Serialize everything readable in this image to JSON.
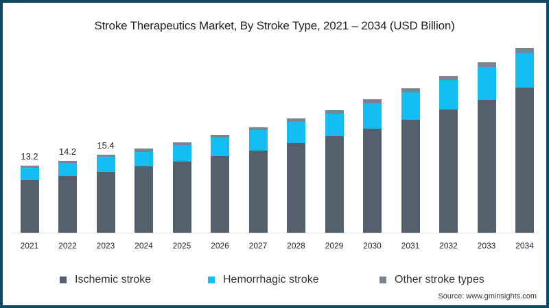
{
  "title": "Stroke Therapeutics Market, By Stroke Type, 2021 – 2034 (USD Billion)",
  "source": "Source: www.gminsights.com",
  "colors": {
    "ischemic": "#55606d",
    "hemorrhagic": "#14bdf2",
    "other": "#7a8593",
    "frame": "#0e4a66"
  },
  "legend": [
    {
      "label": "Ischemic stroke",
      "color": "#55606d"
    },
    {
      "label": "Hemorrhagic stroke",
      "color": "#14bdf2"
    },
    {
      "label": "Other stroke types",
      "color": "#7a8593"
    }
  ],
  "value_labels": {
    "2021": "13.2",
    "2022": "14.2",
    "2023": "15.4"
  },
  "chart_data": {
    "type": "bar",
    "stacked": true,
    "title": "Stroke Therapeutics Market, By Stroke Type, 2021 – 2034 (USD Billion)",
    "xlabel": "",
    "ylabel": "USD Billion",
    "ylim": [
      0,
      38
    ],
    "grid": false,
    "legend_position": "bottom",
    "categories": [
      "2021",
      "2022",
      "2023",
      "2024",
      "2025",
      "2026",
      "2027",
      "2028",
      "2029",
      "2030",
      "2031",
      "2032",
      "2033",
      "2034"
    ],
    "series": [
      {
        "name": "Ischemic stroke",
        "values": [
          10.4,
          11.2,
          12.0,
          13.1,
          14.0,
          15.1,
          16.2,
          17.7,
          19.0,
          20.5,
          22.2,
          24.3,
          26.1,
          28.6
        ]
      },
      {
        "name": "Hemorrhagic stroke",
        "values": [
          2.4,
          2.6,
          2.9,
          2.8,
          3.2,
          3.6,
          4.0,
          4.1,
          4.5,
          5.0,
          5.4,
          5.8,
          6.5,
          6.9
        ]
      },
      {
        "name": "Other stroke types",
        "values": [
          0.4,
          0.4,
          0.5,
          0.7,
          0.6,
          0.6,
          0.6,
          0.7,
          0.6,
          0.8,
          0.8,
          0.8,
          1.0,
          0.9
        ]
      }
    ],
    "totals": [
      13.2,
      14.2,
      15.4,
      16.6,
      17.8,
      19.3,
      20.8,
      22.5,
      24.1,
      26.3,
      28.4,
      30.9,
      33.6,
      36.4
    ],
    "annotations": [
      {
        "x": "2021",
        "text": "13.2"
      },
      {
        "x": "2022",
        "text": "14.2"
      },
      {
        "x": "2023",
        "text": "15.4"
      }
    ]
  }
}
